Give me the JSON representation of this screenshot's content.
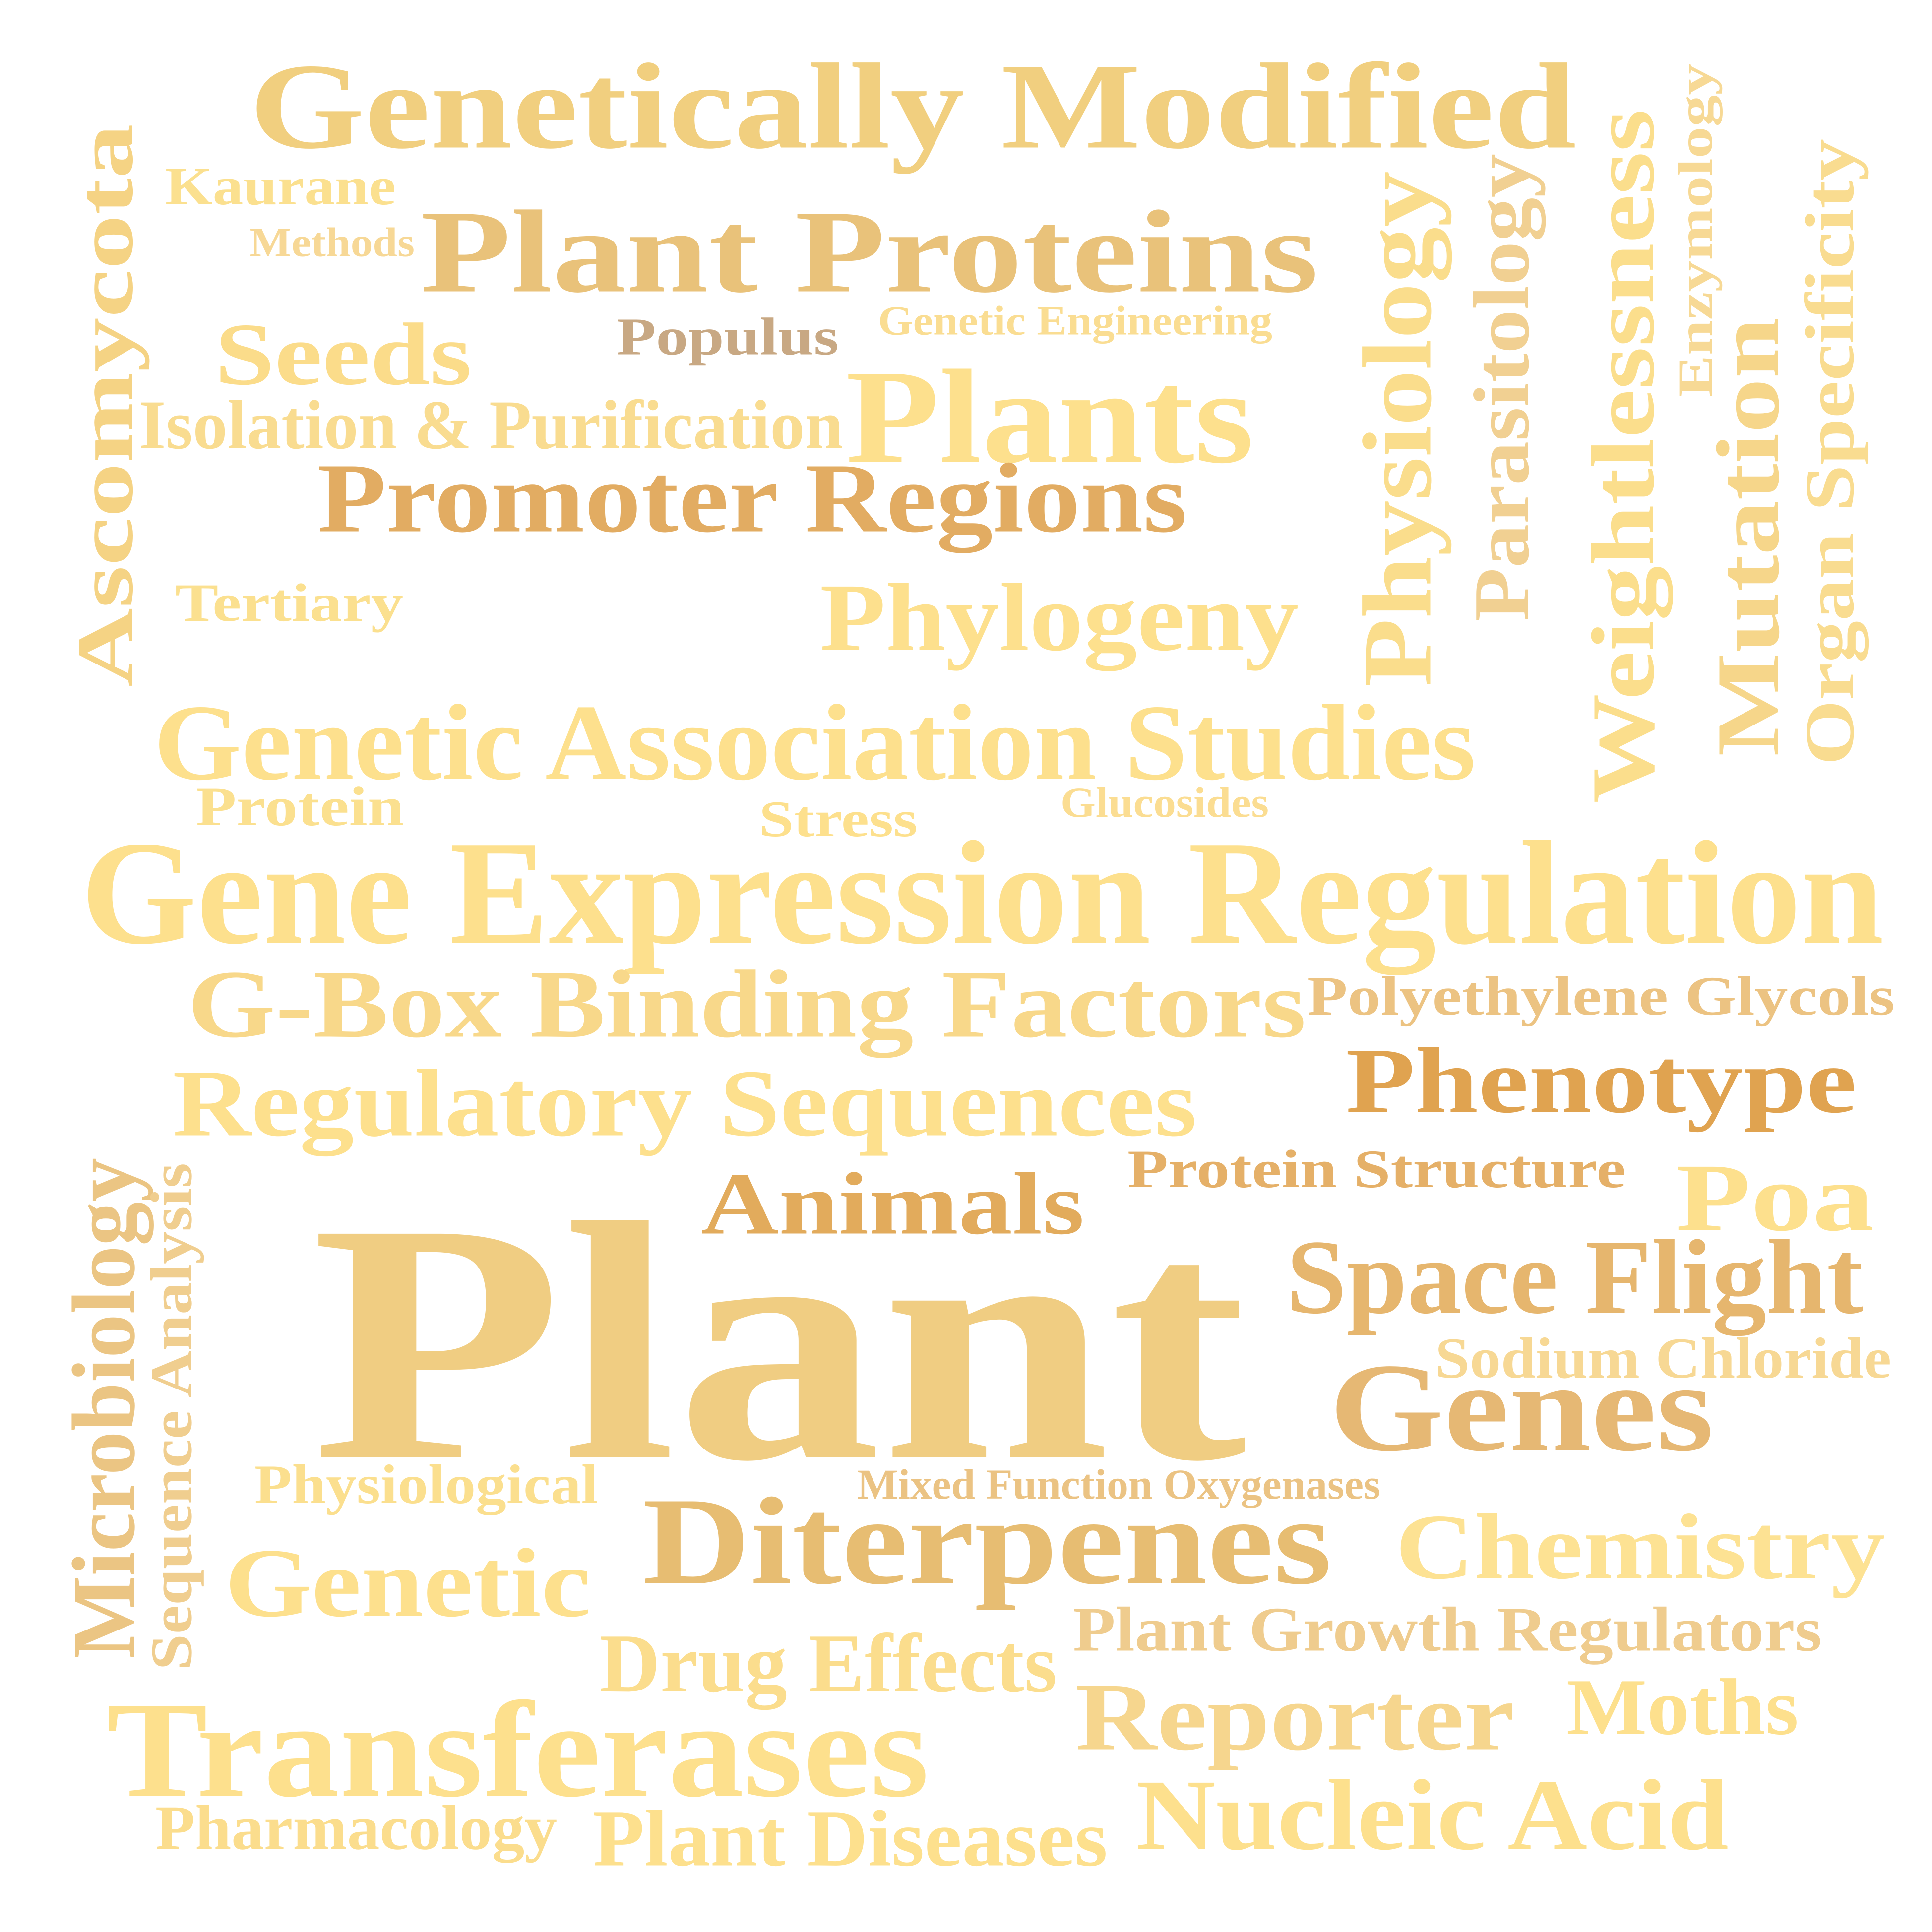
{
  "colors": {
    "background": "#ffffff",
    "light_gold": "#fde08d",
    "pale_gold": "#f9dc90",
    "gold": "#f0ce85",
    "tan": "#e5b56c",
    "amber": "#e0a350",
    "brown_gray": "#c8a883"
  },
  "words": [
    {
      "id": "genetically-modified",
      "text": "Genetically Modified",
      "color": "#f1cf7f"
    },
    {
      "id": "kaurane",
      "text": "Kaurane",
      "color": "#fbe08f"
    },
    {
      "id": "methods",
      "text": "Methods",
      "color": "#f7d896"
    },
    {
      "id": "plant-proteins",
      "text": "Plant Proteins",
      "color": "#e9c27a"
    },
    {
      "id": "seeds",
      "text": "Seeds",
      "color": "#fbdc8a"
    },
    {
      "id": "populus",
      "text": "Populus",
      "color": "#c8a883"
    },
    {
      "id": "genetic-engineering",
      "text": "Genetic Engineering",
      "color": "#fadd92"
    },
    {
      "id": "isolation-purification",
      "text": "Isolation & Purification",
      "color": "#f9dc90"
    },
    {
      "id": "plants",
      "text": "Plants",
      "color": "#fde08d"
    },
    {
      "id": "promoter-regions",
      "text": "Promoter Regions",
      "color": "#e2ac62"
    },
    {
      "id": "tertiary",
      "text": "Tertiary",
      "color": "#fbe08f"
    },
    {
      "id": "phylogeny",
      "text": "Phylogeny",
      "color": "#fde08d"
    },
    {
      "id": "ascomycota",
      "text": "Ascomycota",
      "color": "#f5d384"
    },
    {
      "id": "physiology",
      "text": "Physiology",
      "color": "#fadd8c"
    },
    {
      "id": "parasitology",
      "text": "Parasitology",
      "color": "#f1d092"
    },
    {
      "id": "weightlessness",
      "text": "Weightlessness",
      "color": "#fbde8c"
    },
    {
      "id": "enzymology",
      "text": "Enzymology",
      "color": "#f7d995"
    },
    {
      "id": "mutation",
      "text": "Mutation",
      "color": "#f6d68a"
    },
    {
      "id": "organ-specificity",
      "text": "Organ Specificity",
      "color": "#f9dc90"
    },
    {
      "id": "genetic-association-studies",
      "text": "Genetic Association Studies",
      "color": "#fde08d"
    },
    {
      "id": "protein",
      "text": "Protein",
      "color": "#fbe08f"
    },
    {
      "id": "stress",
      "text": "Stress",
      "color": "#fde08d"
    },
    {
      "id": "glucosides",
      "text": "Glucosides",
      "color": "#fbdd92"
    },
    {
      "id": "gene-expression-regulation",
      "text": "Gene Expression Regulation",
      "color": "#fde08d"
    },
    {
      "id": "g-box-binding-factors",
      "text": "G-Box Binding Factors",
      "color": "#f8d88a"
    },
    {
      "id": "polyethylene-glycols",
      "text": "Polyethylene Glycols",
      "color": "#ecc382"
    },
    {
      "id": "regulatory-sequences",
      "text": "Regulatory Sequences",
      "color": "#fde08d"
    },
    {
      "id": "phenotype",
      "text": "Phenotype",
      "color": "#e0a350"
    },
    {
      "id": "protein-structure",
      "text": "Protein Structure",
      "color": "#e5b068"
    },
    {
      "id": "animals",
      "text": "Animals",
      "color": "#e2ab5c"
    },
    {
      "id": "poa",
      "text": "Poa",
      "color": "#fde08d"
    },
    {
      "id": "microbiology",
      "text": "Microbiology",
      "color": "#ebc583"
    },
    {
      "id": "sequence-analysis",
      "text": "Sequence Analysis",
      "color": "#f0ce8f"
    },
    {
      "id": "plant",
      "text": "Plant",
      "color": "#f0cd82"
    },
    {
      "id": "space-flight",
      "text": "Space Flight",
      "color": "#e6b66e"
    },
    {
      "id": "sodium-chloride",
      "text": "Sodium Chloride",
      "color": "#f7d894"
    },
    {
      "id": "genes",
      "text": "Genes",
      "color": "#e6b874"
    },
    {
      "id": "physiological",
      "text": "Physiological",
      "color": "#fbdf8e"
    },
    {
      "id": "mixed-function-oxygenases",
      "text": "Mixed Function Oxygenases",
      "color": "#ebc383"
    },
    {
      "id": "diterpenes",
      "text": "Diterpenes",
      "color": "#e7bd72"
    },
    {
      "id": "chemistry",
      "text": "Chemistry",
      "color": "#fde293"
    },
    {
      "id": "genetic",
      "text": "Genetic",
      "color": "#fde08d"
    },
    {
      "id": "plant-growth-regulators",
      "text": "Plant Growth Regulators",
      "color": "#efcc8e"
    },
    {
      "id": "drug-effects",
      "text": "Drug Effects",
      "color": "#fbdd8d"
    },
    {
      "id": "transferases",
      "text": "Transferases",
      "color": "#fde08d"
    },
    {
      "id": "reporter",
      "text": "Reporter",
      "color": "#f6d68e"
    },
    {
      "id": "moths",
      "text": "Moths",
      "color": "#fde08d"
    },
    {
      "id": "pharmacology",
      "text": "Pharmacology",
      "color": "#fbdd8d"
    },
    {
      "id": "plant-diseases",
      "text": "Plant Diseases",
      "color": "#fde08d"
    },
    {
      "id": "nucleic-acid",
      "text": "Nucleic Acid",
      "color": "#fde08d"
    }
  ]
}
